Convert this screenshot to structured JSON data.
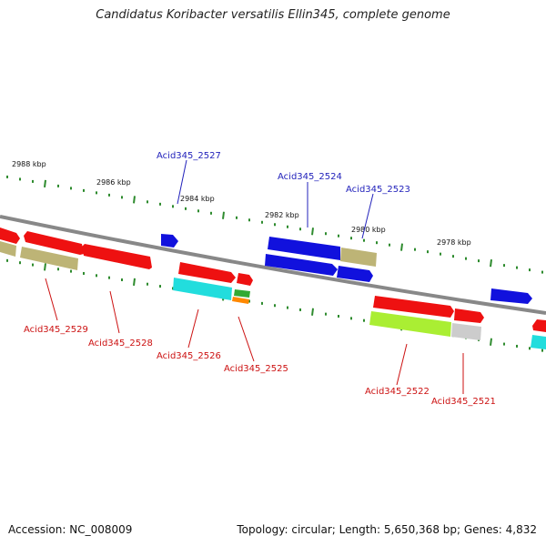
{
  "title": "Candidatus Koribacter versatilis Ellin345, complete genome",
  "accession": "Accession: NC_008009",
  "summary": "Topology: circular; Length: 5,650,368 bp; Genes: 4,832",
  "kbp_labels": [
    "2988 kbp",
    "2986 kbp",
    "2984 kbp",
    "2982 kbp",
    "2980 kbp",
    "2978 kbp"
  ],
  "gene_labels_top": [
    "Acid345_2527",
    "Acid345_2524",
    "Acid345_2523"
  ],
  "gene_labels_bottom": [
    "Acid345_2529",
    "Acid345_2528",
    "Acid345_2526",
    "Acid345_2525",
    "Acid345_2522",
    "Acid345_2521"
  ],
  "colors": {
    "red": "#ee1111",
    "blue": "#1111dd",
    "khaki": "#bdb476",
    "cyan": "#22dddd",
    "lime": "#aaee33",
    "gray": "#cccccc",
    "green": "#33aa33",
    "orange": "#ff8800",
    "top_label": "#2222bb",
    "bottom_label": "#cc1111"
  }
}
